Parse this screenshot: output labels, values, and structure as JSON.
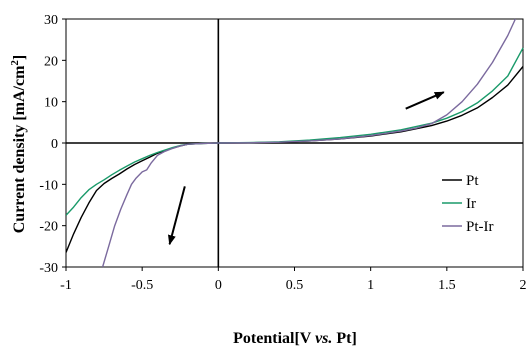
{
  "chart_data": {
    "type": "line",
    "title": "",
    "xlabel_parts": [
      "Potential[V ",
      "vs.",
      " Pt]"
    ],
    "ylabel_parts": [
      "Current density [mA/cm",
      "2",
      "]"
    ],
    "xlim": [
      -1,
      2
    ],
    "ylim": [
      -30,
      30
    ],
    "xticks": [
      -1,
      -0.5,
      0,
      0.5,
      1,
      1.5,
      2
    ],
    "xtick_labels": [
      "-1",
      "-0.5",
      "0",
      "0.5",
      "1",
      "1.5",
      "2"
    ],
    "yticks": [
      -30,
      -20,
      -10,
      0,
      10,
      20,
      30
    ],
    "ytick_labels": [
      "-30",
      "-20",
      "-10",
      "0",
      "10",
      "20",
      "30"
    ],
    "grid": false,
    "legend_position": "right",
    "series": [
      {
        "name": "Pt",
        "color": "#000000",
        "points": [
          [
            -1.0,
            -26.5
          ],
          [
            -0.95,
            -22
          ],
          [
            -0.9,
            -18
          ],
          [
            -0.85,
            -14.5
          ],
          [
            -0.8,
            -11.5
          ],
          [
            -0.75,
            -9.8
          ],
          [
            -0.7,
            -8.6
          ],
          [
            -0.65,
            -7.5
          ],
          [
            -0.6,
            -6.3
          ],
          [
            -0.55,
            -5.2
          ],
          [
            -0.5,
            -4.3
          ],
          [
            -0.45,
            -3.4
          ],
          [
            -0.4,
            -2.5
          ],
          [
            -0.35,
            -1.8
          ],
          [
            -0.3,
            -1.2
          ],
          [
            -0.25,
            -0.7
          ],
          [
            -0.2,
            -0.3
          ],
          [
            -0.1,
            -0.1
          ],
          [
            0,
            0
          ],
          [
            0.2,
            0.05
          ],
          [
            0.4,
            0.2
          ],
          [
            0.6,
            0.5
          ],
          [
            0.8,
            1.0
          ],
          [
            1.0,
            1.7
          ],
          [
            1.2,
            2.7
          ],
          [
            1.4,
            4.2
          ],
          [
            1.5,
            5.3
          ],
          [
            1.6,
            6.7
          ],
          [
            1.7,
            8.5
          ],
          [
            1.8,
            11.0
          ],
          [
            1.9,
            14.0
          ],
          [
            2.0,
            18.5
          ]
        ]
      },
      {
        "name": "Ir",
        "color": "#1a9a6a",
        "points": [
          [
            -1.0,
            -17.5
          ],
          [
            -0.95,
            -15.5
          ],
          [
            -0.9,
            -13.2
          ],
          [
            -0.85,
            -11.3
          ],
          [
            -0.8,
            -10.0
          ],
          [
            -0.75,
            -8.9
          ],
          [
            -0.7,
            -7.7
          ],
          [
            -0.65,
            -6.6
          ],
          [
            -0.6,
            -5.6
          ],
          [
            -0.55,
            -4.6
          ],
          [
            -0.5,
            -3.8
          ],
          [
            -0.45,
            -3.0
          ],
          [
            -0.4,
            -2.3
          ],
          [
            -0.35,
            -1.7
          ],
          [
            -0.3,
            -1.1
          ],
          [
            -0.25,
            -0.6
          ],
          [
            -0.2,
            -0.3
          ],
          [
            -0.1,
            -0.1
          ],
          [
            0,
            0
          ],
          [
            0.2,
            0.1
          ],
          [
            0.4,
            0.3
          ],
          [
            0.6,
            0.7
          ],
          [
            0.8,
            1.3
          ],
          [
            1.0,
            2.1
          ],
          [
            1.2,
            3.2
          ],
          [
            1.4,
            4.8
          ],
          [
            1.5,
            6.0
          ],
          [
            1.6,
            7.6
          ],
          [
            1.7,
            9.7
          ],
          [
            1.8,
            12.6
          ],
          [
            1.9,
            16.2
          ],
          [
            2.0,
            23.0
          ]
        ]
      },
      {
        "name": "Pt-Ir",
        "color": "#7b6a9e",
        "points": [
          [
            -0.76,
            -30.0
          ],
          [
            -0.72,
            -25.0
          ],
          [
            -0.68,
            -20.0
          ],
          [
            -0.64,
            -16.0
          ],
          [
            -0.6,
            -12.5
          ],
          [
            -0.57,
            -10.0
          ],
          [
            -0.54,
            -8.5
          ],
          [
            -0.5,
            -7.0
          ],
          [
            -0.47,
            -6.5
          ],
          [
            -0.44,
            -4.8
          ],
          [
            -0.4,
            -3.0
          ],
          [
            -0.35,
            -2.0
          ],
          [
            -0.3,
            -1.3
          ],
          [
            -0.25,
            -0.7
          ],
          [
            -0.2,
            -0.3
          ],
          [
            -0.1,
            -0.1
          ],
          [
            0,
            0
          ],
          [
            0.2,
            0.05
          ],
          [
            0.4,
            0.2
          ],
          [
            0.6,
            0.5
          ],
          [
            0.8,
            1.0
          ],
          [
            1.0,
            1.8
          ],
          [
            1.2,
            2.9
          ],
          [
            1.3,
            3.6
          ],
          [
            1.4,
            4.7
          ],
          [
            1.5,
            6.8
          ],
          [
            1.6,
            10.0
          ],
          [
            1.7,
            14.2
          ],
          [
            1.8,
            19.5
          ],
          [
            1.9,
            26.0
          ],
          [
            1.95,
            30.0
          ]
        ]
      }
    ],
    "annotations": [
      {
        "type": "arrow",
        "from": [
          1.23,
          8.3
        ],
        "to": [
          1.48,
          12.3
        ],
        "color": "#000000"
      },
      {
        "type": "arrow",
        "from": [
          -0.22,
          -10.5
        ],
        "to": [
          -0.32,
          -24.5
        ],
        "color": "#000000"
      }
    ]
  }
}
